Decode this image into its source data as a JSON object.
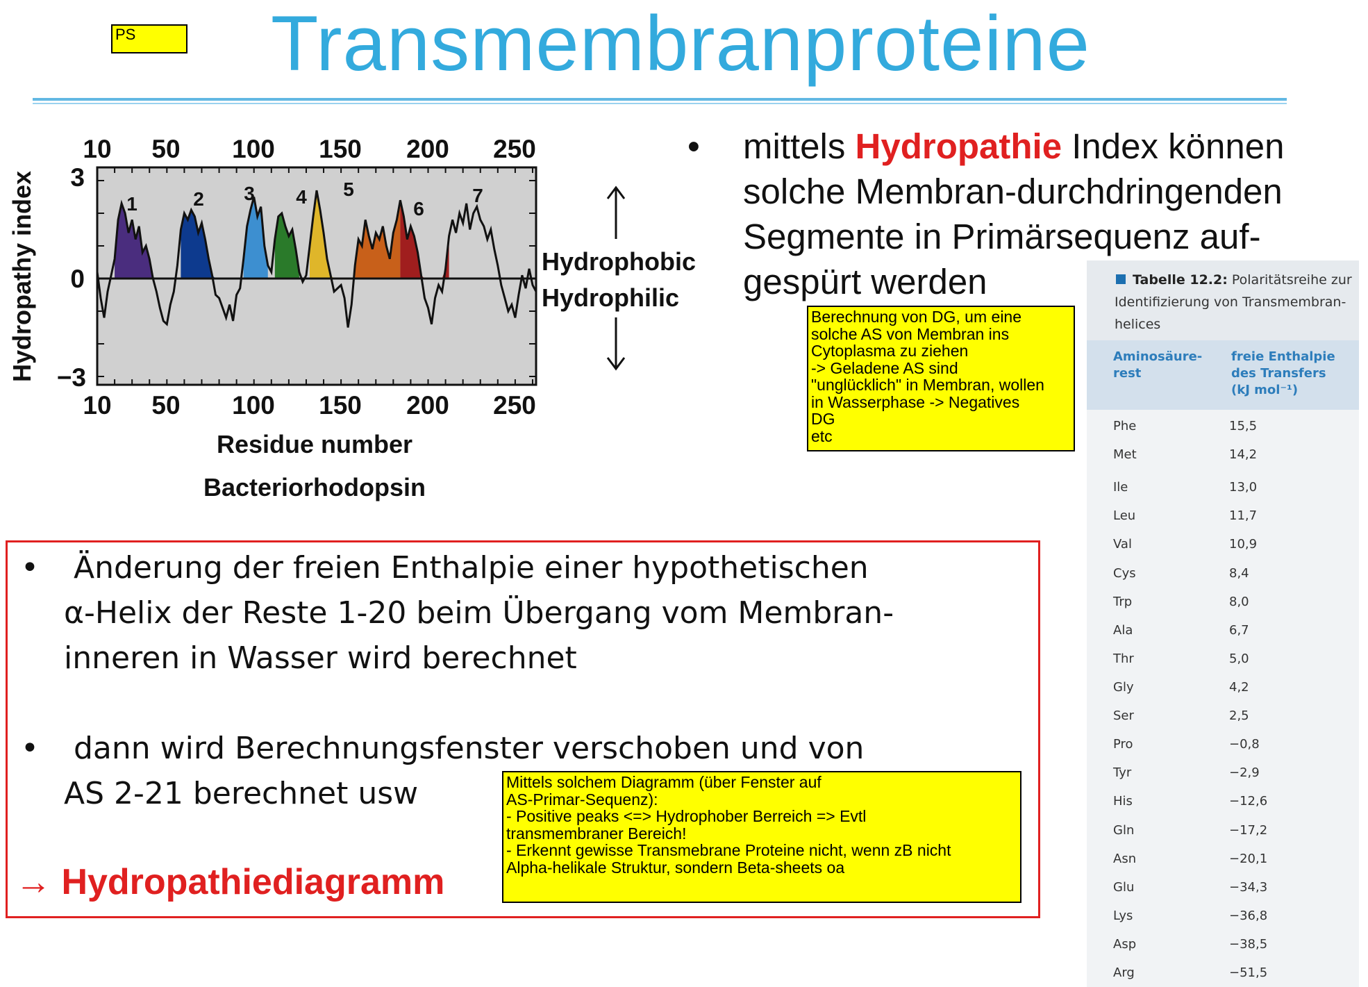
{
  "header": {
    "title": "Transmembranproteine",
    "ps_note": "PS"
  },
  "plot": {
    "y_axis_title": "Hydropathy index",
    "x_axis_title": "Residue number",
    "protein_label": "Bacteriorhodopsin",
    "y_ticks": [
      "3",
      "0",
      "−3"
    ],
    "x_ticks": [
      "10",
      "50",
      "100",
      "150",
      "200",
      "250"
    ],
    "peak_labels": [
      "1",
      "2",
      "3",
      "4",
      "5",
      "6",
      "7"
    ],
    "colors": {
      "background": "#d0d0d0",
      "helices": [
        "#4a2d7e",
        "#0d3a8e",
        "#3d8fd0",
        "#2a7a2a",
        "#dfb62a",
        "#c8601a",
        "#a01e1e"
      ]
    }
  },
  "legend": {
    "hydrophobic": "Hydrophobic",
    "hydrophilic": "Hydrophilic"
  },
  "bullet_top": {
    "bullet": "•",
    "text_before": "mittels ",
    "highlight": "Hydropathie",
    "text_after": " Index können solche Membran-durchdringenden Segmente in Primärsequenz auf-gespürt werden"
  },
  "note_dg": {
    "lines": [
      "Berechnung von DG, um eine",
      "solche AS von Membran ins",
      "Cytoplasma zu ziehen",
      "-> Geladene AS sind",
      "\"unglücklich\" in Membran, wollen",
      "in Wasserphase -> Negatives",
      "DG",
      "etc"
    ]
  },
  "red_box": {
    "bullet1": {
      "bullet": "•",
      "line1": "Änderung der freien Enthalpie einer hypothetischen",
      "line2": "α-Helix der Reste 1-20 beim Übergang vom Membran-",
      "line3": "inneren in Wasser wird berechnet"
    },
    "bullet2": {
      "bullet": "•",
      "line1": "dann wird Berechnungsfenster verschoben und von",
      "line2": "AS 2-21 berechnet usw"
    },
    "result": "→ Hydropathiediagramm"
  },
  "note_diagram": {
    "lines": [
      "Mittels solchem Diagramm (über Fenster auf",
      "AS-Primar-Sequenz):",
      "- Positive peaks <=> Hydrophober Berreich => Evtl",
      "transmembraner Bereich!",
      "- Erkennt gewisse Transmebrane Proteine nicht, wenn zB nicht",
      "Alpha-helikale Struktur, sondern Beta-sheets oa"
    ]
  },
  "table": {
    "caption_bold": "Tabelle 12.2:",
    "caption_rest": " Polaritätsreihe zur Identifizierung von Transmembran-helices",
    "col1_header_line1": "Aminosäure-",
    "col1_header_line2": "rest",
    "col2_header_line1": "freie Enthalpie",
    "col2_header_line2": "des Transfers",
    "col2_header_line3": "(kJ mol⁻¹)",
    "rows": [
      {
        "aa": "Phe",
        "val": "15,5"
      },
      {
        "aa": "Met",
        "val": "14,2"
      },
      {
        "aa": "Ile",
        "val": "13,0"
      },
      {
        "aa": "Leu",
        "val": "11,7"
      },
      {
        "aa": "Val",
        "val": "10,9"
      },
      {
        "aa": "Cys",
        "val": "8,4"
      },
      {
        "aa": "Trp",
        "val": "8,0"
      },
      {
        "aa": "Ala",
        "val": "6,7"
      },
      {
        "aa": "Thr",
        "val": "5,0"
      },
      {
        "aa": "Gly",
        "val": "4,2"
      },
      {
        "aa": "Ser",
        "val": "2,5"
      },
      {
        "aa": "Pro",
        "val": "−0,8"
      },
      {
        "aa": "Tyr",
        "val": "−2,9"
      },
      {
        "aa": "His",
        "val": "−12,6"
      },
      {
        "aa": "Gln",
        "val": "−17,2"
      },
      {
        "aa": "Asn",
        "val": "−20,1"
      },
      {
        "aa": "Glu",
        "val": "−34,3"
      },
      {
        "aa": "Lys",
        "val": "−36,8"
      },
      {
        "aa": "Asp",
        "val": "−38,5"
      },
      {
        "aa": "Arg",
        "val": "−51,5"
      }
    ]
  }
}
